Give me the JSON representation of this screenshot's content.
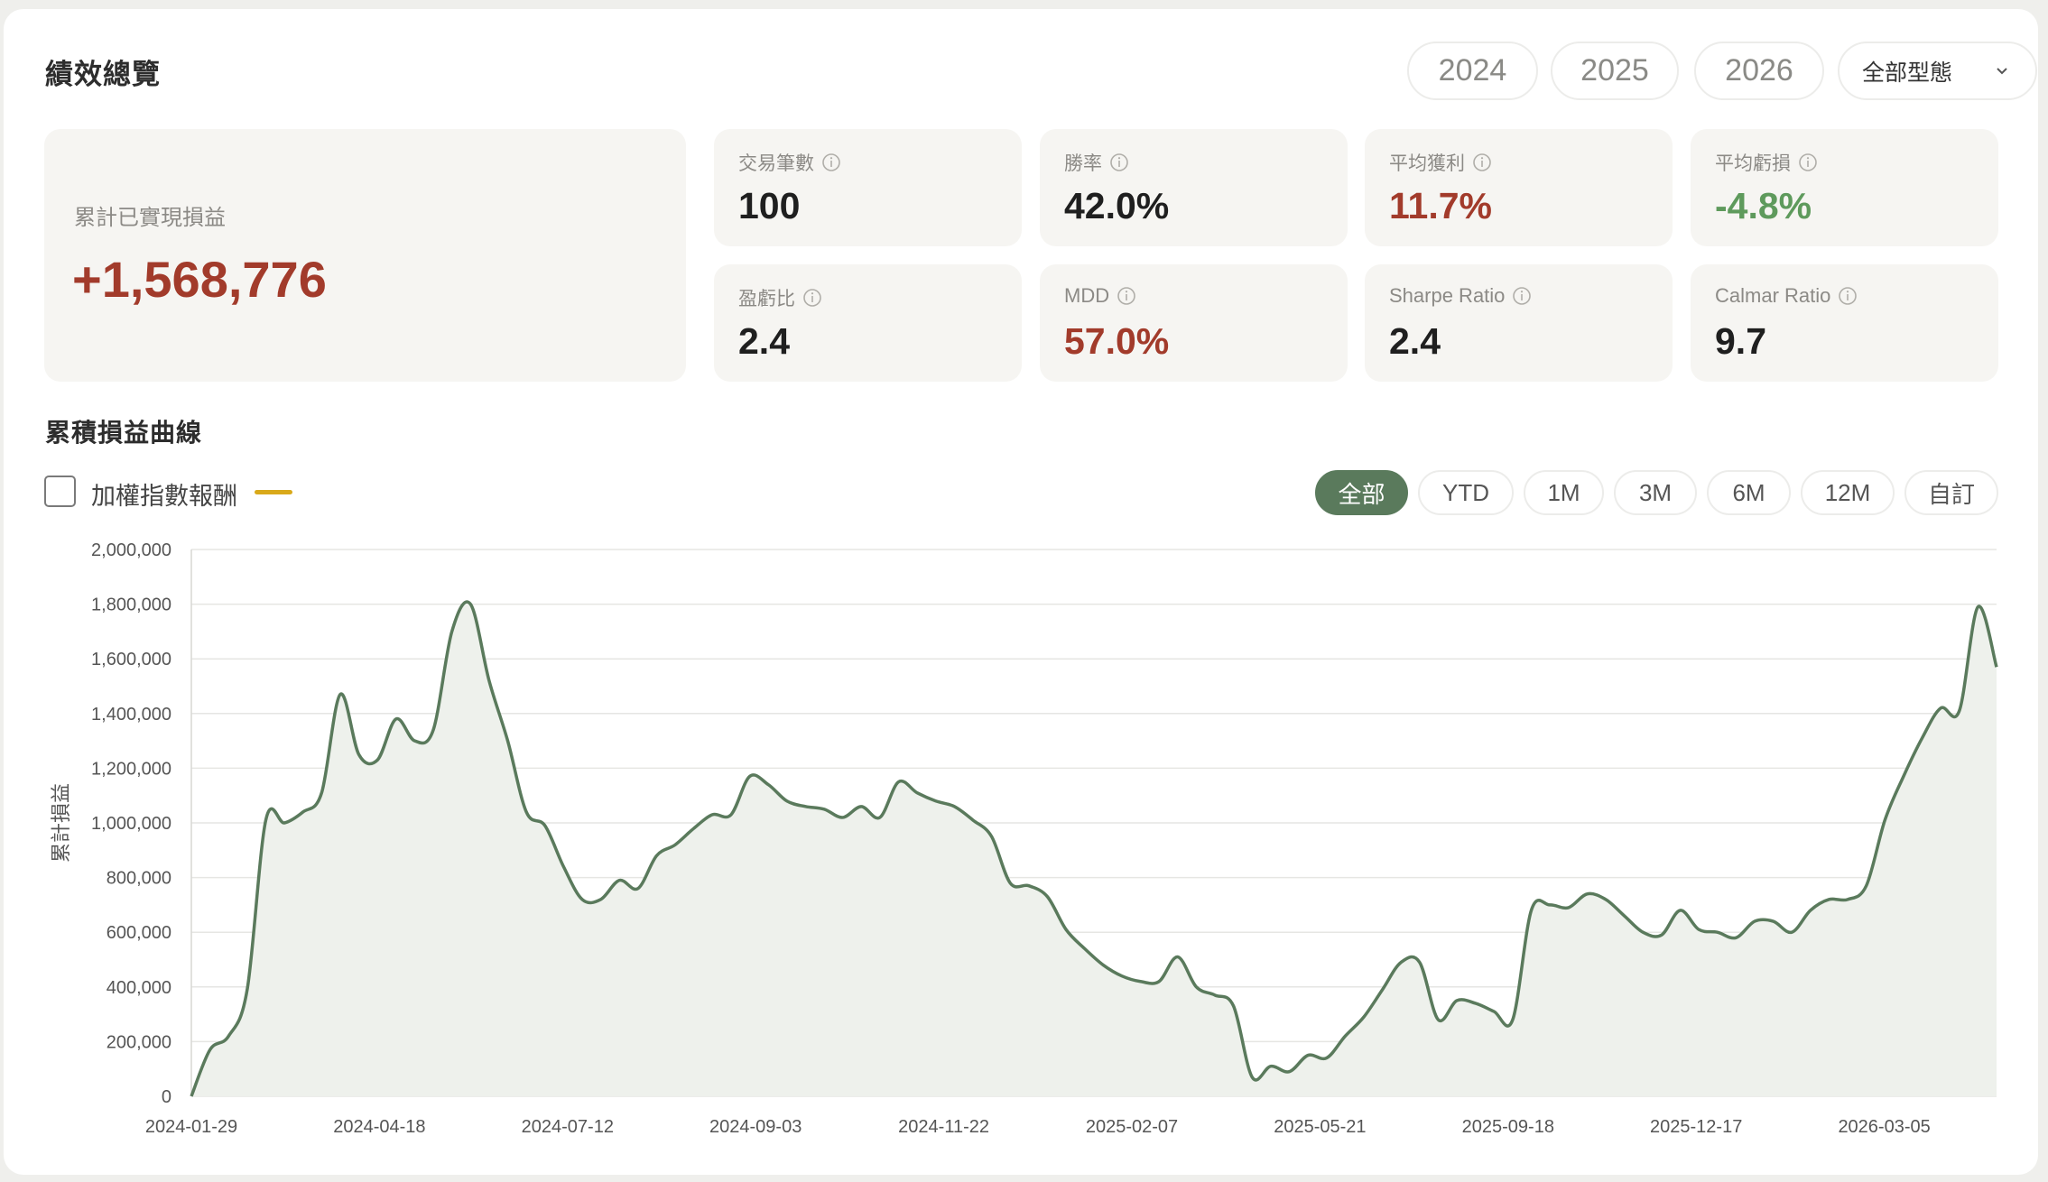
{
  "header": {
    "title": "績效總覽",
    "years": [
      "2024",
      "2025",
      "2026"
    ],
    "type_select": "全部型態"
  },
  "summary": {
    "label": "累計已實現損益",
    "value": "+1,568,776",
    "value_color": "#a23b2b"
  },
  "kpis": [
    {
      "label": "交易筆數",
      "value": "100",
      "tone": "neutral"
    },
    {
      "label": "勝率",
      "value": "42.0%",
      "tone": "neutral"
    },
    {
      "label": "平均獲利",
      "value": "11.7%",
      "tone": "red"
    },
    {
      "label": "平均虧損",
      "value": "-4.8%",
      "tone": "green"
    },
    {
      "label": "盈虧比",
      "value": "2.4",
      "tone": "neutral"
    },
    {
      "label": "MDD",
      "value": "57.0%",
      "tone": "red"
    },
    {
      "label": "Sharpe Ratio",
      "value": "2.4",
      "tone": "neutral"
    },
    {
      "label": "Calmar Ratio",
      "value": "9.7",
      "tone": "neutral"
    }
  ],
  "curve": {
    "title": "累積損益曲線",
    "benchmark_label": "加權指數報酬",
    "benchmark_checked": false,
    "benchmark_color": "#d9a91a",
    "ranges": [
      "全部",
      "YTD",
      "1M",
      "3M",
      "6M",
      "12M",
      "自訂"
    ],
    "active_range": "全部"
  },
  "chart_data": {
    "type": "area",
    "ylabel": "累計損益",
    "ylim": [
      0,
      2000000
    ],
    "yticks": [
      0,
      200000,
      400000,
      600000,
      800000,
      1000000,
      1200000,
      1400000,
      1600000,
      1800000,
      2000000
    ],
    "xtick_labels": [
      "2024-01-29",
      "2024-04-18",
      "2024-07-12",
      "2024-09-03",
      "2024-11-22",
      "2025-02-07",
      "2025-05-21",
      "2025-09-18",
      "2025-12-17",
      "2026-03-05"
    ],
    "line_color": "#5a7a5c",
    "fill_color": "#eef1ec",
    "grid": true,
    "series": [
      {
        "values": [
          0,
          170000,
          220000,
          390000,
          1010000,
          1000000,
          1040000,
          1110000,
          1470000,
          1250000,
          1230000,
          1380000,
          1300000,
          1340000,
          1700000,
          1800000,
          1520000,
          1300000,
          1040000,
          990000,
          840000,
          720000,
          720000,
          790000,
          760000,
          880000,
          920000,
          980000,
          1030000,
          1030000,
          1170000,
          1140000,
          1080000,
          1060000,
          1050000,
          1020000,
          1060000,
          1020000,
          1150000,
          1110000,
          1080000,
          1060000,
          1010000,
          950000,
          780000,
          770000,
          730000,
          610000,
          540000,
          480000,
          440000,
          420000,
          420000,
          510000,
          400000,
          370000,
          330000,
          70000,
          110000,
          90000,
          150000,
          140000,
          220000,
          290000,
          390000,
          490000,
          490000,
          280000,
          350000,
          340000,
          310000,
          280000,
          680000,
          700000,
          690000,
          740000,
          720000,
          660000,
          600000,
          590000,
          680000,
          610000,
          600000,
          580000,
          640000,
          640000,
          600000,
          680000,
          720000,
          720000,
          770000,
          1010000,
          1170000,
          1310000,
          1420000,
          1410000,
          1790000,
          1570000
        ]
      }
    ]
  }
}
